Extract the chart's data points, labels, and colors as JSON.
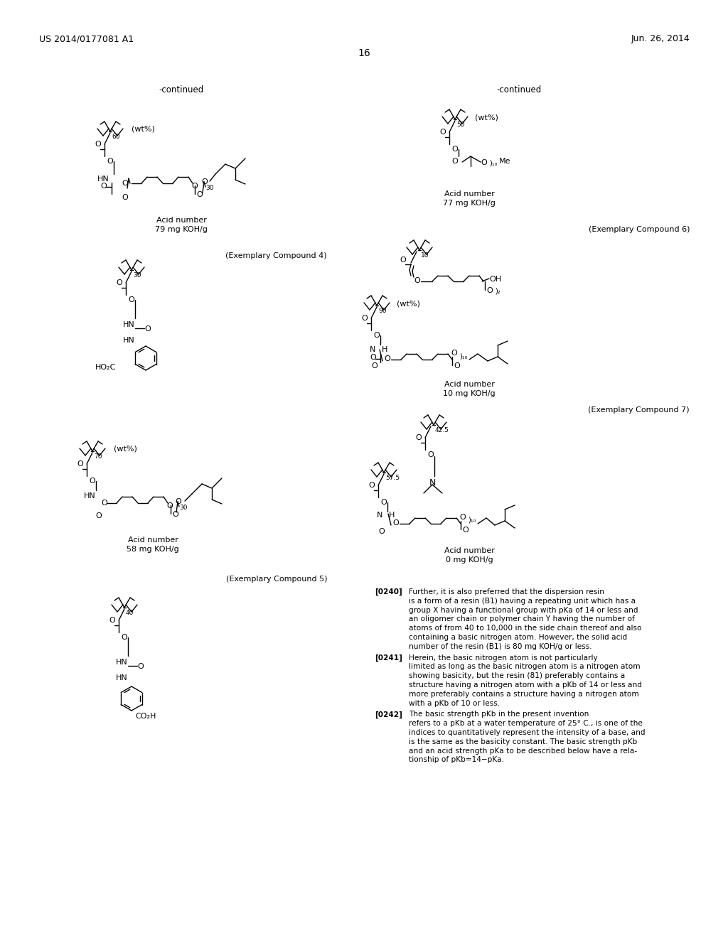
{
  "background_color": "#ffffff",
  "header_left": "US 2014/0177081 A1",
  "header_right": "Jun. 26, 2014",
  "page_number": "16"
}
